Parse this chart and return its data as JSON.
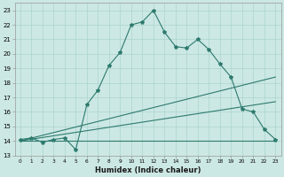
{
  "xlabel": "Humidex (Indice chaleur)",
  "bg_color": "#cce8e4",
  "line_color": "#2d7a6e",
  "grid_color": "#aad4cc",
  "xlim": [
    -0.5,
    23.5
  ],
  "ylim": [
    13,
    23.5
  ],
  "yticks": [
    13,
    14,
    15,
    16,
    17,
    18,
    19,
    20,
    21,
    22,
    23
  ],
  "xticks": [
    0,
    1,
    2,
    3,
    4,
    5,
    6,
    7,
    8,
    9,
    10,
    11,
    12,
    13,
    14,
    15,
    16,
    17,
    18,
    19,
    20,
    21,
    22,
    23
  ],
  "line1_x": [
    0,
    1,
    2,
    3,
    4,
    5,
    6,
    7,
    8,
    9,
    10,
    11,
    12,
    13,
    14,
    15,
    16,
    17,
    18,
    19,
    20,
    21,
    22,
    23
  ],
  "line1_y": [
    14.1,
    14.2,
    13.9,
    14.1,
    14.2,
    13.4,
    16.5,
    17.5,
    19.2,
    20.1,
    22.0,
    22.2,
    23.0,
    21.5,
    20.5,
    20.4,
    21.0,
    20.3,
    19.3,
    18.4,
    16.2,
    16.0,
    14.8,
    14.1
  ],
  "line2_x": [
    0,
    1,
    2,
    3,
    4,
    5,
    6,
    7,
    8,
    9,
    10,
    11,
    12,
    13,
    14,
    15,
    16,
    17,
    18,
    19,
    20,
    21,
    22,
    23
  ],
  "line2_y": [
    14.0,
    14.0,
    14.0,
    14.0,
    14.0,
    14.0,
    14.0,
    14.0,
    14.0,
    14.0,
    14.0,
    14.0,
    14.0,
    14.0,
    14.0,
    14.0,
    14.0,
    14.0,
    14.0,
    14.0,
    14.0,
    14.0,
    14.0,
    14.0
  ],
  "line3_x": [
    0,
    23
  ],
  "line3_y": [
    14.0,
    18.4
  ],
  "line4_x": [
    0,
    23
  ],
  "line4_y": [
    14.0,
    16.7
  ]
}
